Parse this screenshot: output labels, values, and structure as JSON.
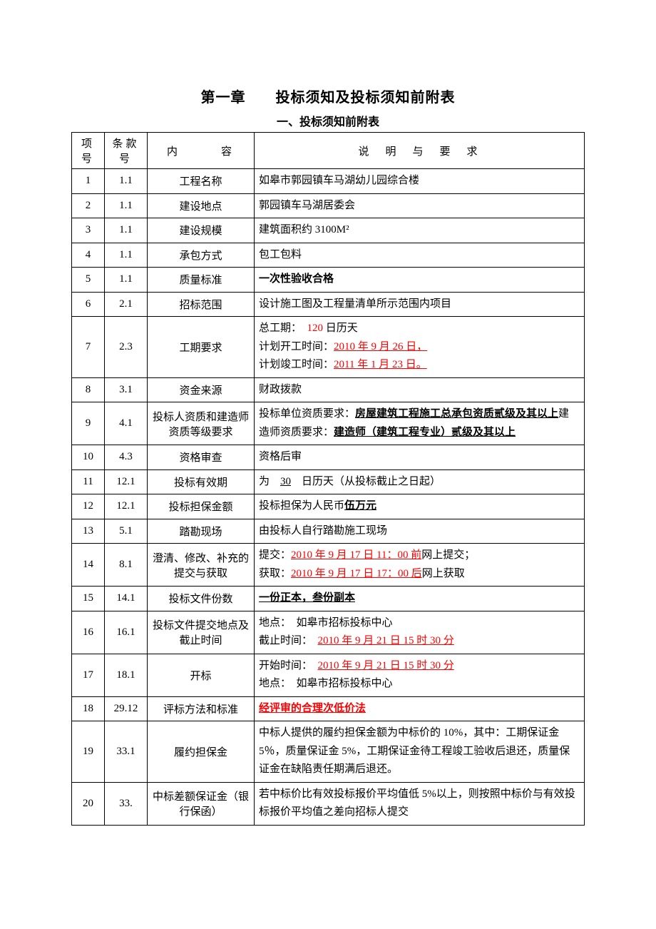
{
  "page": {
    "chapter_label": "第一章",
    "chapter_title": "投标须知及投标须知前附表",
    "subtitle": "一、投标须知前附表",
    "header": {
      "c1": "项号",
      "c2": "条款号",
      "c3": "内　　　容",
      "c4": "说　明　与　要　求"
    },
    "colors": {
      "text": "#000000",
      "highlight": "#ff0000",
      "border": "#000000",
      "bg": "#ffffff"
    }
  },
  "rows": [
    {
      "n": "1",
      "clause": "1.1",
      "label": "工程名称",
      "desc_plain": "如皋市郭园镇车马湖幼儿园综合楼"
    },
    {
      "n": "2",
      "clause": "1.1",
      "label": "建设地点",
      "desc_plain": "郭园镇车马湖居委会"
    },
    {
      "n": "3",
      "clause": "1.1",
      "label": "建设规模",
      "desc_plain": "建筑面积约 3100M²"
    },
    {
      "n": "4",
      "clause": "1.1",
      "label": "承包方式",
      "desc_plain": "包工包料"
    },
    {
      "n": "5",
      "clause": "1.1",
      "label": "质量标准",
      "desc_bold": "一次性验收合格"
    },
    {
      "n": "6",
      "clause": "2.1",
      "label": "招标范围",
      "desc_plain": "设计施工图及工程量清单所示范围内项目"
    },
    {
      "n": "7",
      "clause": "2.3",
      "label": "工期要求",
      "desc_lines": [
        [
          {
            "t": "总工期：　"
          },
          {
            "t": "120",
            "red": true
          },
          {
            "t": " 日历天"
          }
        ],
        [
          {
            "t": "计划开工时间："
          },
          {
            "t": "2010 年 9 月 26 日，",
            "red": true,
            "u": true
          }
        ],
        [
          {
            "t": "计划竣工时间："
          },
          {
            "t": "2011 年 1 月 23 日。",
            "red": true,
            "u": true
          }
        ]
      ]
    },
    {
      "n": "8",
      "clause": "3.1",
      "label": "资金来源",
      "desc_plain": "财政拨款"
    },
    {
      "n": "9",
      "clause": "4.1",
      "label": "投标人资质和建造师资质等级要求",
      "desc_lines": [
        [
          {
            "t": "投标单位资质要求："
          },
          {
            "t": "房屋建筑工程施工总承包资质贰级及其以上",
            "b": true,
            "u": true
          },
          {
            "t": "建造师资质要求："
          },
          {
            "t": "建造师（建筑工程专业）贰级及其以上",
            "b": true,
            "u": true
          }
        ]
      ]
    },
    {
      "n": "10",
      "clause": "4.3",
      "label": "资格审查",
      "desc_plain": "资格后审"
    },
    {
      "n": "11",
      "clause": "12.1",
      "label": "投标有效期",
      "desc_lines": [
        [
          {
            "t": "为　"
          },
          {
            "t": "30",
            "u": true
          },
          {
            "t": "　日历天（从投标截止之日起）"
          }
        ]
      ]
    },
    {
      "n": "12",
      "clause": "12.1",
      "label": "投标担保金额",
      "desc_lines": [
        [
          {
            "t": "投标担保为人民币"
          },
          {
            "t": "伍万元",
            "b": true,
            "u": true
          }
        ]
      ]
    },
    {
      "n": "13",
      "clause": "5.1",
      "label": "踏勘现场",
      "desc_plain": "由投标人自行踏勘施工现场"
    },
    {
      "n": "14",
      "clause": "8.1",
      "label": "澄清、修改、补充的提交与获取",
      "desc_lines": [
        [
          {
            "t": "提交："
          },
          {
            "t": "2010 年 9 月 17 日 11：00 前",
            "red": true,
            "u": true
          },
          {
            "t": "网上提交；"
          }
        ],
        [
          {
            "t": "获取："
          },
          {
            "t": "2010 年 9 月 17 日 17：00 后",
            "red": true,
            "u": true
          },
          {
            "t": "网上获取"
          }
        ]
      ]
    },
    {
      "n": "15",
      "clause": "14.1",
      "label": "投标文件份数",
      "desc_lines": [
        [
          {
            "t": "一份正本，叁份副本",
            "b": true,
            "u": true
          }
        ]
      ]
    },
    {
      "n": "16",
      "clause": "16.1",
      "label": "投标文件提交地点及截止时间",
      "desc_lines": [
        [
          {
            "t": "地点：　如皋市招标投标中心"
          }
        ],
        [
          {
            "t": "截止时间：　"
          },
          {
            "t": "2010 年 9 月 21 日 15 时 30 分",
            "red": true,
            "u": true
          }
        ]
      ]
    },
    {
      "n": "17",
      "clause": "18.1",
      "label": "开标",
      "desc_lines": [
        [
          {
            "t": "开始时间：　"
          },
          {
            "t": "2010 年 9 月 21 日 15 时 30 分",
            "red": true,
            "u": true
          }
        ],
        [
          {
            "t": "地点：　如皋市招标投标中心"
          }
        ]
      ]
    },
    {
      "n": "18",
      "clause": "29.12",
      "label": "评标方法和标准",
      "desc_lines": [
        [
          {
            "t": "经评审的合理次低价法",
            "red": true,
            "b": true,
            "u": true
          }
        ]
      ]
    },
    {
      "n": "19",
      "clause": "33.1",
      "label": "履约担保金",
      "desc_plain": "中标人提供的履约担保金额为中标价的 10%，其中：工期保证金 5％，质量保证金 5%，工期保证金待工程竣工验收后退还，质量保证金在缺陷责任期满后退还。"
    },
    {
      "n": "20",
      "clause": "33.",
      "label": "中标差额保证金（银行保函）",
      "desc_plain": "若中标价比有效投标报价平均值低 5%以上，则按照中标价与有效投标报价平均值之差向招标人提交"
    }
  ]
}
